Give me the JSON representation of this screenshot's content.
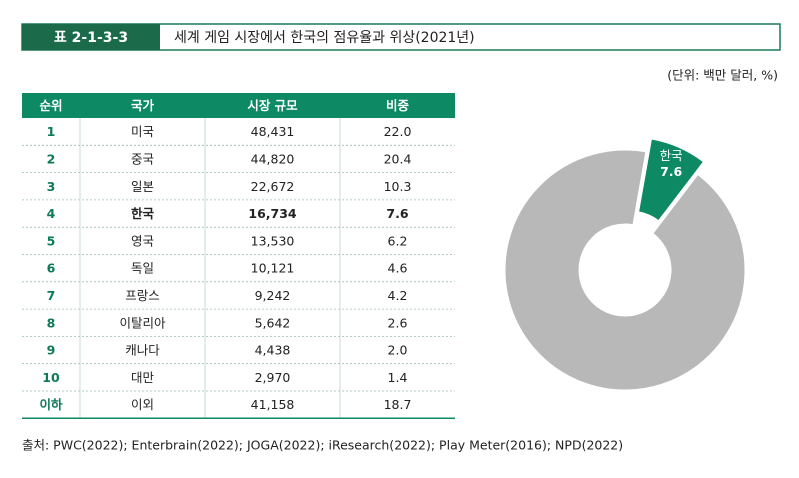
{
  "header": {
    "label": "표 2-1-3-3",
    "title": "세계 게임 시장에서 한국의 점유율과 위상(2021년)"
  },
  "unit": "(단위: 백만 달러, %)",
  "table": {
    "columns": [
      "순위",
      "국가",
      "시장 규모",
      "비중"
    ],
    "rows": [
      [
        "1",
        "미국",
        "48,431",
        "22.0"
      ],
      [
        "2",
        "중국",
        "44,820",
        "20.4"
      ],
      [
        "3",
        "일본",
        "22,672",
        "10.3"
      ],
      [
        "4",
        "한국",
        "16,734",
        "7.6"
      ],
      [
        "5",
        "영국",
        "13,530",
        "6.2"
      ],
      [
        "6",
        "독일",
        "10,121",
        "4.6"
      ],
      [
        "7",
        "프랑스",
        "9,242",
        "4.2"
      ],
      [
        "8",
        "이탈리아",
        "5,642",
        "2.6"
      ],
      [
        "9",
        "캐나다",
        "4,438",
        "2.0"
      ],
      [
        "10",
        "대만",
        "2,970",
        "1.4"
      ],
      [
        "이하",
        "이외",
        "41,158",
        "18.7"
      ]
    ]
  },
  "source": "출처: PWC(2022); Enterbrain(2022); JOGA(2022); iResearch(2022); Play Meter(2016); NPD(2022)",
  "chart_data": {
    "type": "donut",
    "categories": [
      "한국",
      null
    ],
    "values": [
      7.6,
      92.4
    ],
    "colors": [
      "#0d8a63",
      "#b8b8b8"
    ]
  }
}
